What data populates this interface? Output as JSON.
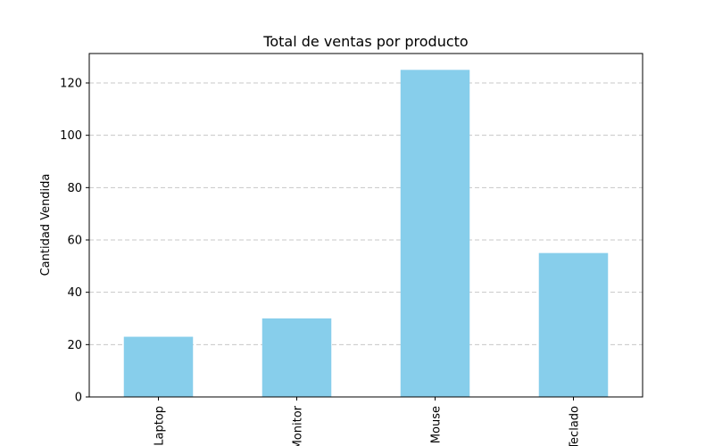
{
  "chart_data": {
    "type": "bar",
    "title": "Total de ventas por producto",
    "xlabel": "",
    "ylabel": "Cantidad Vendida",
    "categories": [
      "Laptop",
      "Monitor",
      "Mouse",
      "Teclado"
    ],
    "values": [
      23,
      30,
      125,
      55
    ],
    "ylim": [
      0,
      131.25
    ],
    "yticks": [
      0,
      20,
      40,
      60,
      80,
      100,
      120
    ],
    "grid": "y-dashed",
    "bar_color": "#87ceeb"
  }
}
